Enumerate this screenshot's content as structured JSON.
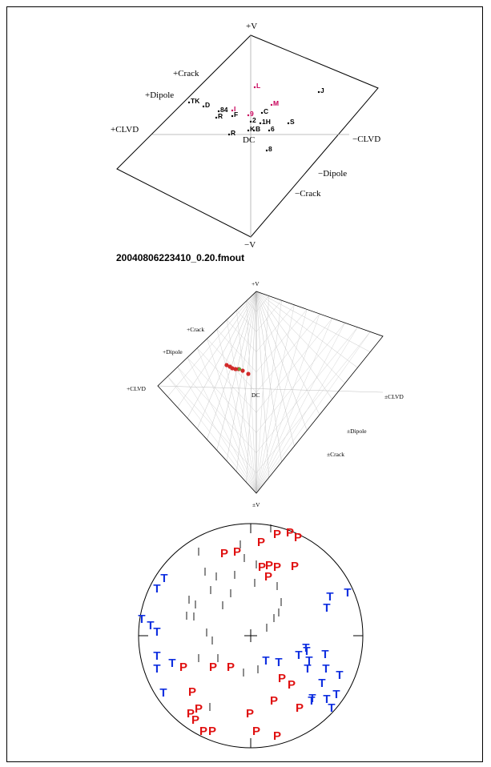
{
  "plot1": {
    "labels": {
      "top": "+V",
      "bottom": "−V",
      "crack_pos": "+Crack",
      "dipole_pos": "+Dipole",
      "clvd_pos": "+CLVD",
      "clvd_neg": "−CLVD",
      "dipole_neg": "−Dipole",
      "crack_neg": "−Crack",
      "dc": "DC"
    },
    "points": [
      {
        "label": "J",
        "color": "#000000"
      },
      {
        "label": "L",
        "color": "#c8005a"
      },
      {
        "label": "M",
        "color": "#c8005a"
      },
      {
        "label": "TK",
        "color": "#000000"
      },
      {
        "label": "D",
        "color": "#000000"
      },
      {
        "label": "84",
        "color": "#000000"
      },
      {
        "label": "F",
        "color": "#000000"
      },
      {
        "label": "I",
        "color": "#c8005a"
      },
      {
        "label": "R",
        "color": "#000000"
      },
      {
        "label": "9",
        "color": "#c8005a"
      },
      {
        "label": "C",
        "color": "#000000"
      },
      {
        "label": "2",
        "color": "#000000"
      },
      {
        "label": "1H",
        "color": "#000000"
      },
      {
        "label": "S",
        "color": "#000000"
      },
      {
        "label": "K",
        "color": "#000000"
      },
      {
        "label": "B",
        "color": "#000000"
      },
      {
        "label": "6",
        "color": "#000000"
      },
      {
        "label": "R",
        "color": "#000000"
      },
      {
        "label": "8",
        "color": "#000000"
      }
    ]
  },
  "filename": "20040806223410_0.20.fmout",
  "plot2": {
    "labels": {
      "top": "+V",
      "bottom": "±V",
      "crack_pos": "+Crack",
      "dipole_pos": "+Dipole",
      "clvd_pos": "+CLVD",
      "clvd_neg": "±CLVD",
      "dipole_neg": "±Dipole",
      "crack_neg": "±Crack",
      "dc": "DC"
    },
    "dot_color": "#d22a2a",
    "center_dot_color": "#6a9a3a"
  },
  "beachball": {
    "p_color": "#e01010",
    "t_color": "#1030e0",
    "p_label": "P",
    "t_label": "T"
  }
}
